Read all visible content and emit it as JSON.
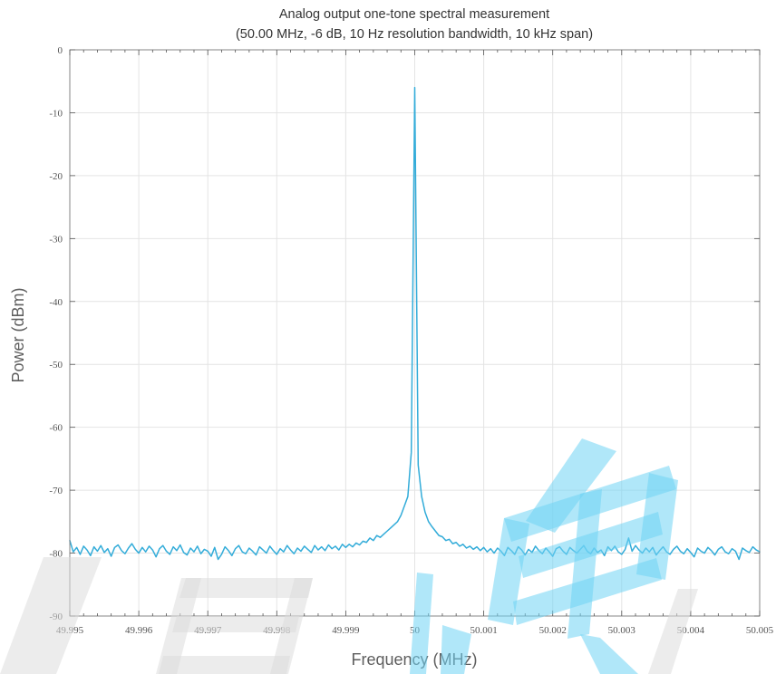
{
  "chart_data": {
    "type": "line",
    "title": "Analog output one-tone spectral measurement",
    "subtitle": "(50.00 MHz, -6 dB, 10 Hz resolution bandwidth, 10 kHz span)",
    "xlabel": "Frequency (MHz)",
    "ylabel": "Power (dBm)",
    "xlim": [
      49.995,
      50.005
    ],
    "ylim": [
      -90,
      0
    ],
    "xticks": [
      49.995,
      49.996,
      49.997,
      49.998,
      49.999,
      50.0,
      50.001,
      50.002,
      50.003,
      50.004,
      50.005
    ],
    "xtick_labels": [
      "49.995",
      "49.996",
      "49.997",
      "49.998",
      "49.999",
      "50",
      "50.001",
      "50.002",
      "50.003",
      "50.004",
      "50.005"
    ],
    "yticks": [
      0,
      -10,
      -20,
      -30,
      -40,
      -50,
      -60,
      -70,
      -80,
      -90
    ],
    "ytick_labels": [
      "0",
      "-10",
      "-20",
      "-30",
      "-40",
      "-50",
      "-60",
      "-70",
      "-80",
      "-90"
    ],
    "grid": true,
    "legend": "none",
    "series": [
      {
        "color": "#33acd9",
        "x": [
          49.995,
          49.99505,
          49.9951,
          49.99515,
          49.9952,
          49.99525,
          49.9953,
          49.99535,
          49.9954,
          49.99545,
          49.9955,
          49.99555,
          49.9956,
          49.99565,
          49.9957,
          49.99575,
          49.9958,
          49.99585,
          49.9959,
          49.99595,
          49.996,
          49.99605,
          49.9961,
          49.99615,
          49.9962,
          49.99625,
          49.9963,
          49.99635,
          49.9964,
          49.99645,
          49.9965,
          49.99655,
          49.9966,
          49.99665,
          49.9967,
          49.99675,
          49.9968,
          49.99685,
          49.9969,
          49.99695,
          49.997,
          49.99705,
          49.9971,
          49.99715,
          49.9972,
          49.99725,
          49.9973,
          49.99735,
          49.9974,
          49.99745,
          49.9975,
          49.99755,
          49.9976,
          49.99765,
          49.9977,
          49.99775,
          49.9978,
          49.99785,
          49.9979,
          49.99795,
          49.998,
          49.99805,
          49.9981,
          49.99815,
          49.9982,
          49.99825,
          49.9983,
          49.99835,
          49.9984,
          49.99845,
          49.9985,
          49.99855,
          49.9986,
          49.99865,
          49.9987,
          49.99875,
          49.9988,
          49.99885,
          49.9989,
          49.99895,
          49.999,
          49.99905,
          49.9991,
          49.99915,
          49.9992,
          49.99925,
          49.9993,
          49.99935,
          49.9994,
          49.99945,
          49.9995,
          49.99955,
          49.9996,
          49.99965,
          49.9997,
          49.99975,
          49.9998,
          49.99985,
          49.9999,
          49.99995,
          50.0,
          50.00005,
          50.0001,
          50.00015,
          50.0002,
          50.00025,
          50.0003,
          50.00035,
          50.0004,
          50.00045,
          50.0005,
          50.00055,
          50.0006,
          50.00065,
          50.0007,
          50.00075,
          50.0008,
          50.00085,
          50.0009,
          50.00095,
          50.001,
          50.00105,
          50.0011,
          50.00115,
          50.0012,
          50.00125,
          50.0013,
          50.00135,
          50.0014,
          50.00145,
          50.0015,
          50.00155,
          50.0016,
          50.00165,
          50.0017,
          50.00175,
          50.0018,
          50.00185,
          50.0019,
          50.00195,
          50.002,
          50.00205,
          50.0021,
          50.00215,
          50.0022,
          50.00225,
          50.0023,
          50.00235,
          50.0024,
          50.00245,
          50.0025,
          50.00255,
          50.0026,
          50.00265,
          50.0027,
          50.00275,
          50.0028,
          50.00285,
          50.0029,
          50.00295,
          50.003,
          50.00305,
          50.0031,
          50.00315,
          50.0032,
          50.00325,
          50.0033,
          50.00335,
          50.0034,
          50.00345,
          50.0035,
          50.00355,
          50.0036,
          50.00365,
          50.0037,
          50.00375,
          50.0038,
          50.00385,
          50.0039,
          50.00395,
          50.004,
          50.00405,
          50.0041,
          50.00415,
          50.0042,
          50.00425,
          50.0043,
          50.00435,
          50.0044,
          50.00445,
          50.0045,
          50.00455,
          50.0046,
          50.00465,
          50.0047,
          50.00475,
          50.0048,
          50.00485,
          50.0049,
          50.00495,
          50.005
        ],
        "y": [
          -78.0,
          -79.8,
          -79.1,
          -80.2,
          -78.9,
          -79.5,
          -80.4,
          -79.0,
          -79.7,
          -78.8,
          -79.9,
          -79.3,
          -80.5,
          -79.1,
          -78.7,
          -79.6,
          -80.1,
          -79.2,
          -78.5,
          -79.4,
          -80.0,
          -79.1,
          -79.8,
          -78.9,
          -79.5,
          -80.6,
          -79.3,
          -78.8,
          -79.7,
          -80.2,
          -79.0,
          -79.6,
          -78.7,
          -79.9,
          -80.3,
          -79.2,
          -79.8,
          -78.9,
          -80.1,
          -79.4,
          -79.7,
          -80.5,
          -79.1,
          -81.0,
          -80.2,
          -79.0,
          -79.6,
          -80.4,
          -79.3,
          -78.8,
          -79.8,
          -80.1,
          -79.2,
          -79.7,
          -80.3,
          -79.0,
          -79.5,
          -80.0,
          -78.9,
          -79.6,
          -80.2,
          -79.3,
          -79.8,
          -78.8,
          -79.5,
          -80.1,
          -79.2,
          -79.7,
          -78.9,
          -79.4,
          -79.9,
          -78.8,
          -79.5,
          -79.0,
          -79.6,
          -78.7,
          -79.3,
          -78.9,
          -79.5,
          -78.6,
          -79.1,
          -78.6,
          -79.0,
          -78.4,
          -78.7,
          -78.1,
          -78.3,
          -77.6,
          -78.0,
          -77.2,
          -77.5,
          -77.0,
          -76.5,
          -76.0,
          -75.5,
          -75.0,
          -74.0,
          -72.5,
          -71.0,
          -64.0,
          -6.0,
          -66.0,
          -71.0,
          -73.5,
          -75.0,
          -75.8,
          -76.5,
          -77.2,
          -77.4,
          -78.0,
          -77.8,
          -78.5,
          -78.3,
          -78.9,
          -78.6,
          -79.2,
          -78.9,
          -79.4,
          -79.0,
          -79.6,
          -79.1,
          -79.8,
          -79.3,
          -80.0,
          -79.2,
          -79.7,
          -80.4,
          -79.1,
          -79.6,
          -80.2,
          -79.0,
          -79.5,
          -80.3,
          -79.4,
          -79.9,
          -78.9,
          -79.6,
          -80.1,
          -79.2,
          -79.8,
          -80.5,
          -79.3,
          -79.0,
          -79.7,
          -80.2,
          -79.1,
          -79.6,
          -80.0,
          -79.4,
          -78.8,
          -79.7,
          -80.1,
          -79.2,
          -79.9,
          -79.5,
          -80.4,
          -79.0,
          -79.6,
          -78.9,
          -79.8,
          -80.2,
          -79.4,
          -77.6,
          -79.7,
          -78.8,
          -79.5,
          -80.0,
          -79.2,
          -79.8,
          -79.1,
          -80.3,
          -79.6,
          -79.0,
          -79.8,
          -80.2,
          -79.4,
          -78.9,
          -79.7,
          -80.1,
          -79.3,
          -79.9,
          -80.6,
          -79.2,
          -79.7,
          -80.0,
          -79.1,
          -79.6,
          -80.3,
          -79.4,
          -79.0,
          -79.8,
          -80.1,
          -79.3,
          -79.7,
          -81.0,
          -79.2,
          -79.6,
          -79.9,
          -79.0,
          -79.5,
          -79.8
        ]
      }
    ]
  }
}
